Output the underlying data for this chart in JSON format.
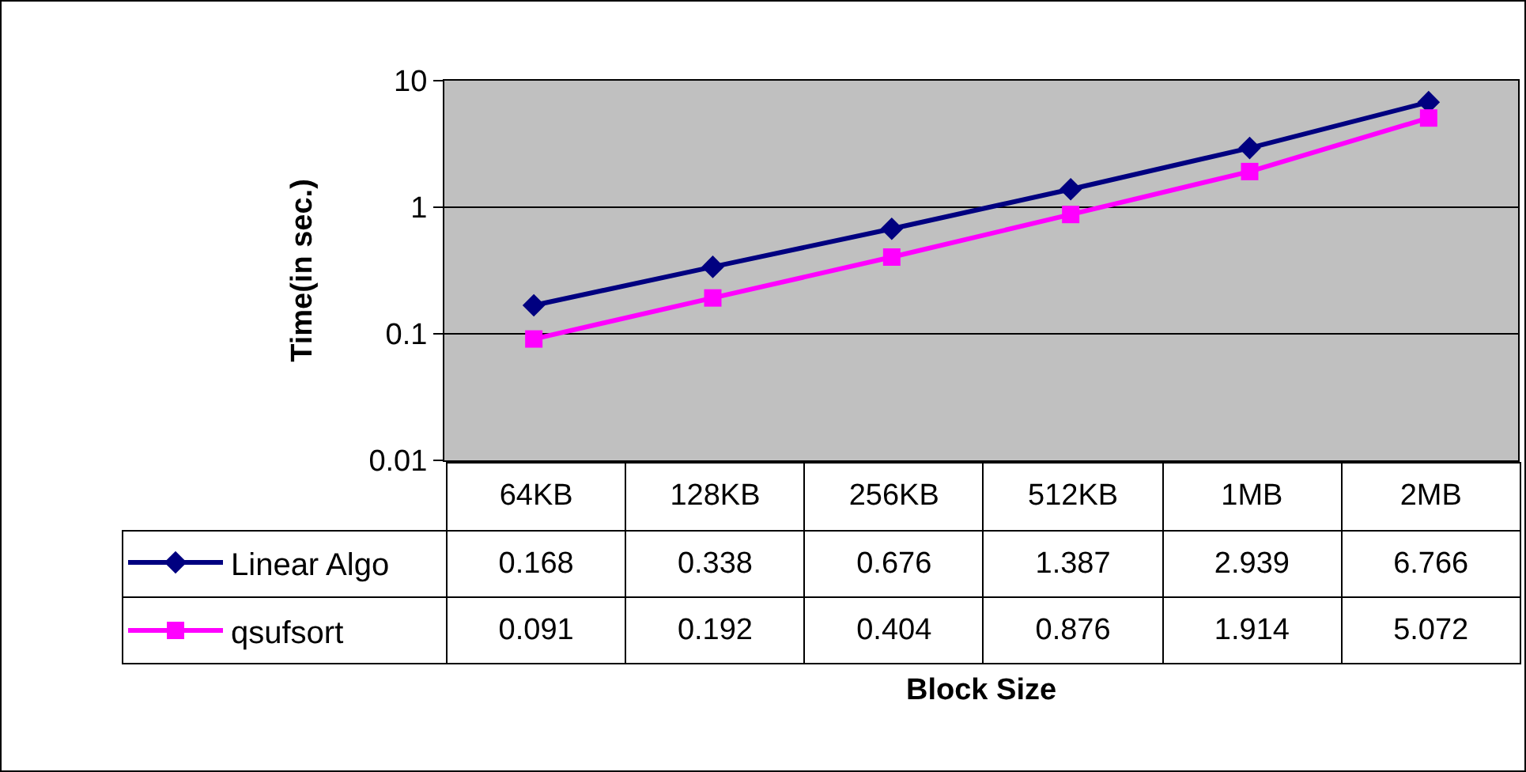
{
  "chart_data": {
    "type": "line",
    "annotations": [
      "Block Size"
    ],
    "ylabel": "Time(in sec.)",
    "categories": [
      "64KB",
      "128KB",
      "256KB",
      "512KB",
      "1MB",
      "2MB"
    ],
    "series": [
      {
        "name": "Linear Algo",
        "color": "#000080",
        "marker": "diamond",
        "values": [
          0.168,
          0.338,
          0.676,
          1.387,
          2.939,
          6.766
        ]
      },
      {
        "name": "qsufsort",
        "color": "#ff00ff",
        "marker": "square",
        "values": [
          0.091,
          0.192,
          0.404,
          0.876,
          1.914,
          5.072
        ]
      }
    ],
    "log": true,
    "ylim": [
      0.01,
      10
    ],
    "yticks": [
      0.01,
      0.1,
      1,
      10
    ],
    "grid": "y",
    "legend": "bottom left",
    "data_labels": true
  }
}
